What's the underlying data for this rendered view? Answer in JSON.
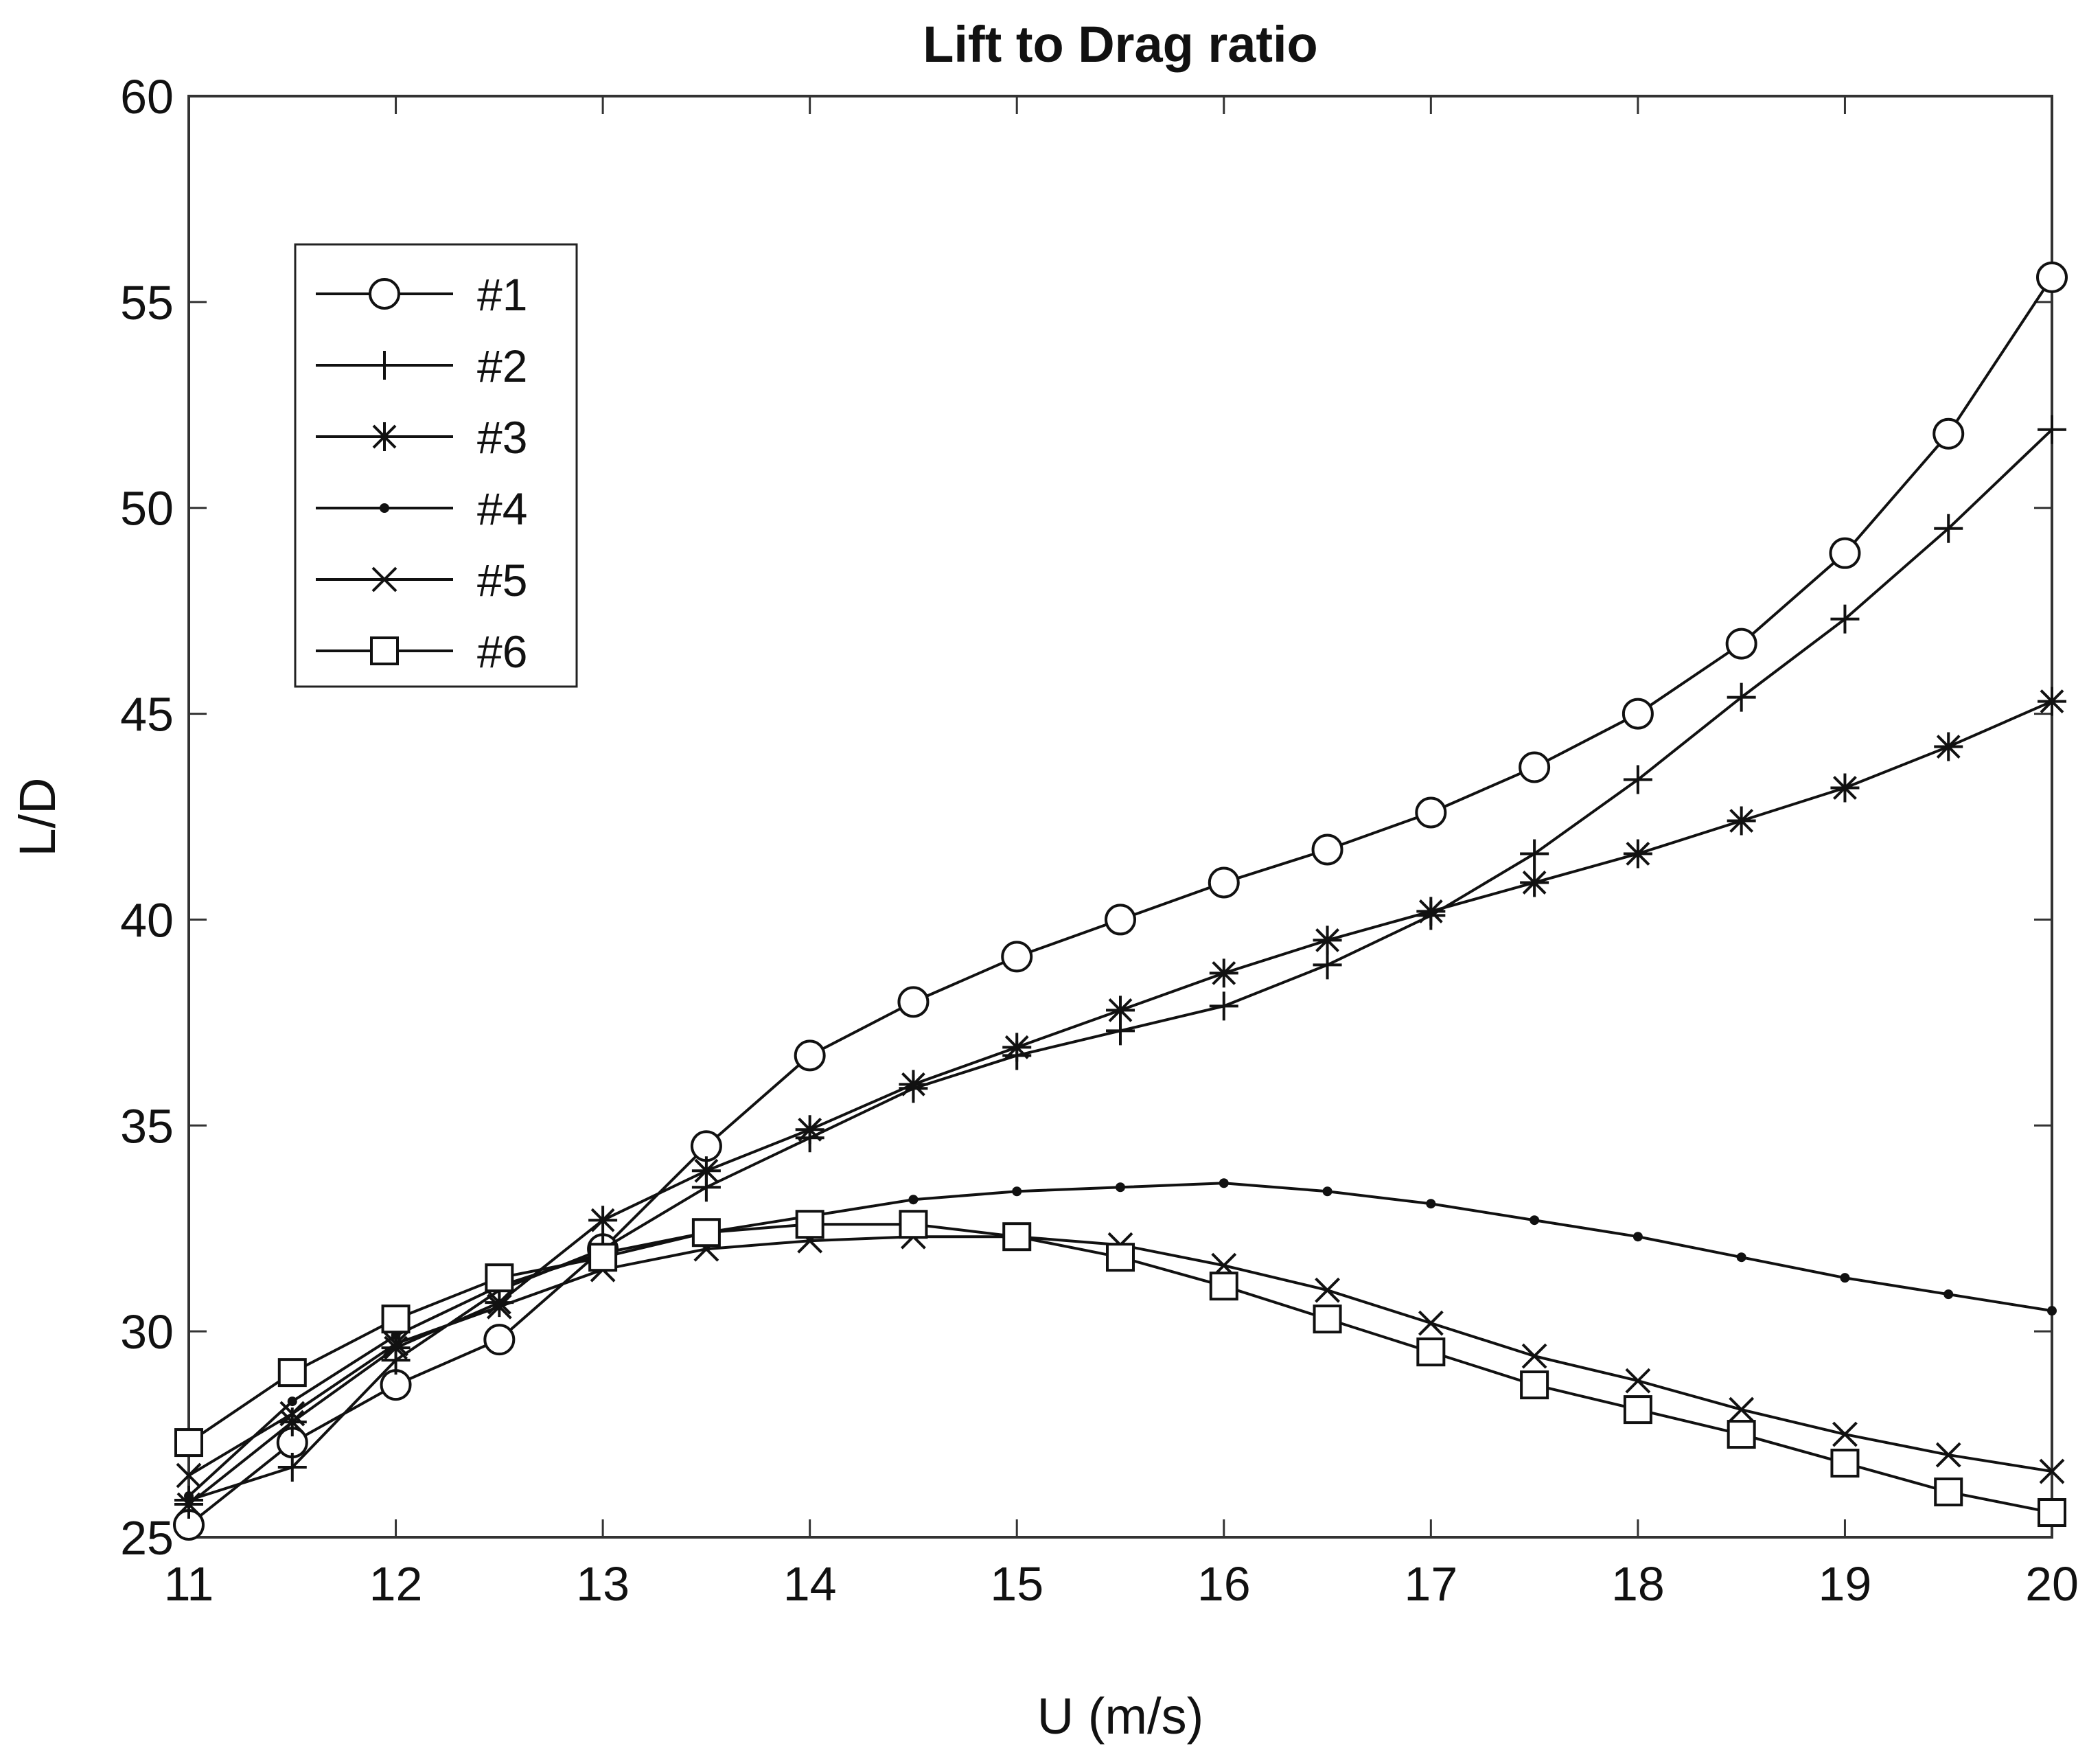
{
  "chart_data": {
    "type": "line",
    "title": "Lift to Drag ratio",
    "xlabel": "U (m/s)",
    "ylabel": "L/D",
    "xlim": [
      11,
      20
    ],
    "ylim": [
      25,
      60
    ],
    "xticks": [
      11,
      12,
      13,
      14,
      15,
      16,
      17,
      18,
      19,
      20
    ],
    "yticks": [
      25,
      30,
      35,
      40,
      45,
      50,
      55,
      60
    ],
    "grid": false,
    "legend_position": "top-left",
    "x": [
      11,
      11.5,
      12,
      12.5,
      13,
      13.5,
      14,
      14.5,
      15,
      15.5,
      16,
      16.5,
      17,
      17.5,
      18,
      18.5,
      19,
      19.5,
      20
    ],
    "series": [
      {
        "name": "#1",
        "marker": "circle",
        "values": [
          25.3,
          27.3,
          28.7,
          29.8,
          32.0,
          34.5,
          36.7,
          38.0,
          39.1,
          40.0,
          40.9,
          41.7,
          42.6,
          43.7,
          45.0,
          46.7,
          48.9,
          51.8,
          55.6
        ]
      },
      {
        "name": "#2",
        "marker": "plus",
        "values": [
          25.9,
          26.7,
          29.3,
          31.0,
          32.0,
          33.5,
          34.7,
          35.9,
          36.7,
          37.3,
          37.9,
          38.9,
          40.1,
          41.6,
          43.4,
          45.4,
          47.3,
          49.5,
          51.9
        ]
      },
      {
        "name": "#3",
        "marker": "asterisk",
        "values": [
          25.8,
          27.8,
          29.6,
          30.7,
          32.7,
          33.9,
          34.9,
          36.0,
          36.9,
          37.8,
          38.7,
          39.5,
          40.2,
          40.9,
          41.6,
          42.4,
          43.2,
          44.2,
          45.3
        ]
      },
      {
        "name": "#4",
        "marker": "dot",
        "values": [
          26.0,
          28.3,
          29.9,
          31.1,
          31.9,
          32.4,
          32.8,
          33.2,
          33.4,
          33.5,
          33.6,
          33.4,
          33.1,
          32.7,
          32.3,
          31.8,
          31.3,
          30.9,
          30.5
        ]
      },
      {
        "name": "#5",
        "marker": "cross",
        "values": [
          26.5,
          28.0,
          29.7,
          30.6,
          31.5,
          32.0,
          32.2,
          32.3,
          32.3,
          32.1,
          31.6,
          31.0,
          30.2,
          29.4,
          28.8,
          28.1,
          27.5,
          27.0,
          26.6
        ]
      },
      {
        "name": "#6",
        "marker": "square",
        "values": [
          27.3,
          29.0,
          30.3,
          31.3,
          31.8,
          32.4,
          32.6,
          32.6,
          32.3,
          31.8,
          31.1,
          30.3,
          29.5,
          28.7,
          28.1,
          27.5,
          26.8,
          26.1,
          25.6
        ]
      }
    ]
  }
}
